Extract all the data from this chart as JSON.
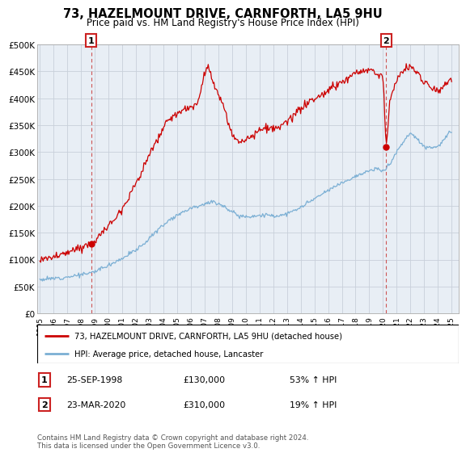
{
  "title": "73, HAZELMOUNT DRIVE, CARNFORTH, LA5 9HU",
  "subtitle": "Price paid vs. HM Land Registry's House Price Index (HPI)",
  "title_fontsize": 10.5,
  "subtitle_fontsize": 8.5,
  "ylabel_ticks": [
    "£0",
    "£50K",
    "£100K",
    "£150K",
    "£200K",
    "£250K",
    "£300K",
    "£350K",
    "£400K",
    "£450K",
    "£500K"
  ],
  "ytick_values": [
    0,
    50000,
    100000,
    150000,
    200000,
    250000,
    300000,
    350000,
    400000,
    450000,
    500000
  ],
  "ylim": [
    0,
    500000
  ],
  "xlim_start": 1994.8,
  "xlim_end": 2025.5,
  "sale1_x": 1998.73,
  "sale1_y": 130000,
  "sale2_x": 2020.23,
  "sale2_y": 310000,
  "red_color": "#cc0000",
  "blue_color": "#7bafd4",
  "bg_fill_color": "#e8eef5",
  "dashed_red": "#cc4444",
  "background_color": "#ffffff",
  "grid_color": "#c8d0da",
  "legend_label_red": "73, HAZELMOUNT DRIVE, CARNFORTH, LA5 9HU (detached house)",
  "legend_label_blue": "HPI: Average price, detached house, Lancaster",
  "sale1_date": "25-SEP-1998",
  "sale1_price": "£130,000",
  "sale1_hpi": "53% ↑ HPI",
  "sale2_date": "23-MAR-2020",
  "sale2_price": "£310,000",
  "sale2_hpi": "19% ↑ HPI",
  "footer": "Contains HM Land Registry data © Crown copyright and database right 2024.\nThis data is licensed under the Open Government Licence v3.0.",
  "xtick_years": [
    1995,
    1996,
    1997,
    1998,
    1999,
    2000,
    2001,
    2002,
    2003,
    2004,
    2005,
    2006,
    2007,
    2008,
    2009,
    2010,
    2011,
    2012,
    2013,
    2014,
    2015,
    2016,
    2017,
    2018,
    2019,
    2020,
    2021,
    2022,
    2023,
    2024,
    2025
  ],
  "hpi_key_years": [
    1995.0,
    1995.5,
    1996.0,
    1996.5,
    1997.0,
    1997.5,
    1998.0,
    1998.5,
    1999.0,
    1999.5,
    2000.0,
    2000.5,
    2001.0,
    2001.5,
    2002.0,
    2002.5,
    2003.0,
    2003.5,
    2004.0,
    2004.5,
    2005.0,
    2005.5,
    2006.0,
    2006.5,
    2007.0,
    2007.5,
    2008.0,
    2008.5,
    2009.0,
    2009.5,
    2010.0,
    2010.5,
    2011.0,
    2011.5,
    2012.0,
    2012.5,
    2013.0,
    2013.5,
    2014.0,
    2014.5,
    2015.0,
    2015.5,
    2016.0,
    2016.5,
    2017.0,
    2017.5,
    2018.0,
    2018.5,
    2019.0,
    2019.5,
    2020.0,
    2020.5,
    2021.0,
    2021.5,
    2022.0,
    2022.5,
    2023.0,
    2023.5,
    2024.0,
    2024.5,
    2025.0
  ],
  "hpi_key_vals": [
    63000,
    64000,
    65000,
    66500,
    68000,
    70000,
    72000,
    74000,
    78000,
    84000,
    90000,
    96000,
    103000,
    110000,
    118000,
    128000,
    140000,
    153000,
    165000,
    175000,
    183000,
    190000,
    196000,
    200000,
    204000,
    207000,
    205000,
    198000,
    188000,
    182000,
    180000,
    181000,
    182000,
    183000,
    181000,
    182000,
    185000,
    190000,
    197000,
    205000,
    213000,
    220000,
    228000,
    236000,
    243000,
    249000,
    255000,
    260000,
    265000,
    268000,
    265000,
    278000,
    300000,
    320000,
    335000,
    325000,
    310000,
    308000,
    310000,
    325000,
    338000
  ],
  "red_key_years": [
    1995.0,
    1995.5,
    1996.0,
    1996.5,
    1997.0,
    1997.5,
    1998.0,
    1998.5,
    1998.73,
    1999.0,
    1999.5,
    2000.0,
    2000.5,
    2001.0,
    2001.5,
    2002.0,
    2002.5,
    2003.0,
    2003.5,
    2004.0,
    2004.5,
    2005.0,
    2005.5,
    2006.0,
    2006.5,
    2007.0,
    2007.3,
    2007.6,
    2008.0,
    2008.5,
    2009.0,
    2009.5,
    2010.0,
    2010.5,
    2011.0,
    2011.5,
    2012.0,
    2012.5,
    2013.0,
    2013.5,
    2014.0,
    2014.5,
    2015.0,
    2015.5,
    2016.0,
    2016.5,
    2017.0,
    2017.5,
    2018.0,
    2018.5,
    2019.0,
    2019.5,
    2020.0,
    2020.23,
    2020.5,
    2021.0,
    2021.5,
    2022.0,
    2022.5,
    2023.0,
    2023.5,
    2024.0,
    2024.5,
    2025.0
  ],
  "red_key_vals": [
    100000,
    102000,
    105000,
    108000,
    112000,
    118000,
    124000,
    128000,
    130000,
    135000,
    148000,
    163000,
    178000,
    196000,
    218000,
    242000,
    268000,
    295000,
    320000,
    345000,
    362000,
    372000,
    378000,
    382000,
    390000,
    448000,
    460000,
    430000,
    405000,
    375000,
    330000,
    320000,
    325000,
    330000,
    340000,
    345000,
    342000,
    345000,
    355000,
    368000,
    380000,
    390000,
    398000,
    405000,
    415000,
    422000,
    430000,
    438000,
    445000,
    450000,
    452000,
    448000,
    440000,
    310000,
    395000,
    435000,
    452000,
    460000,
    448000,
    430000,
    420000,
    415000,
    425000,
    435000
  ]
}
